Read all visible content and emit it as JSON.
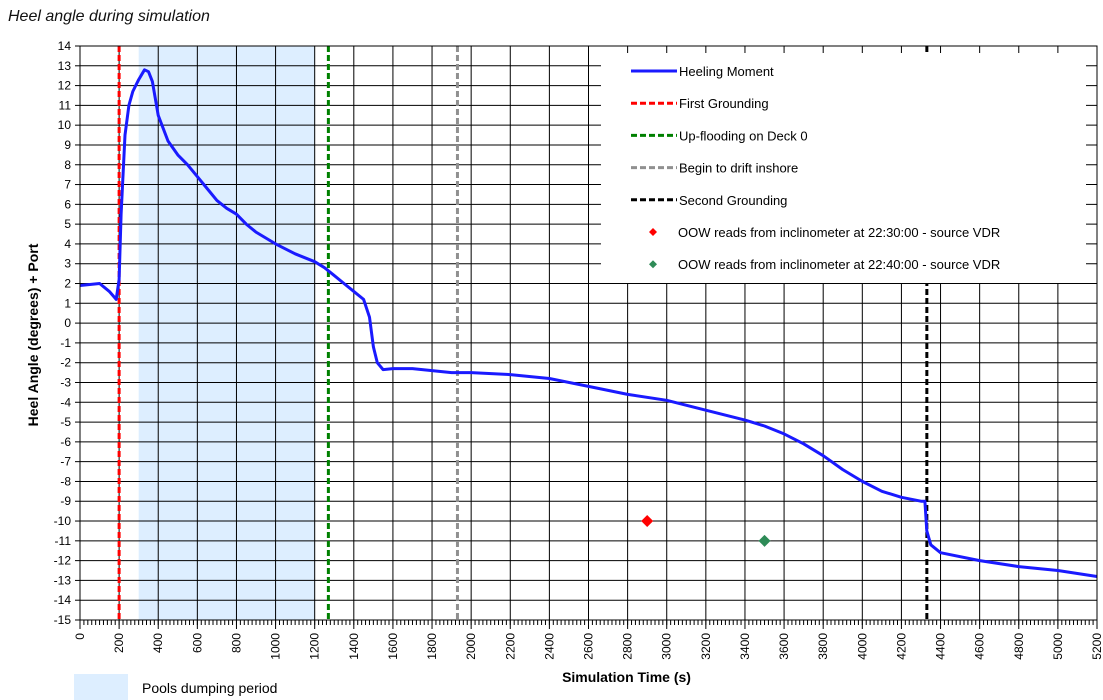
{
  "title": "Heel angle during simulation",
  "chart_data": {
    "type": "line",
    "xlabel": "Simulation Time (s)",
    "ylabel": "Heel Angle (degrees)  + Port",
    "xlim": [
      0,
      5200
    ],
    "ylim": [
      -15,
      14
    ],
    "x_major_step": 200,
    "x_minor_step": 20,
    "y_step": 1,
    "grid": true,
    "legend_position": "top-right",
    "x_ticks": [
      "0",
      "200",
      "400",
      "600",
      "800",
      "1000",
      "1200",
      "1400",
      "1600",
      "1800",
      "2000",
      "2200",
      "2400",
      "2600",
      "2800",
      "3000",
      "3200",
      "3400",
      "3600",
      "3800",
      "4000",
      "4200",
      "4400",
      "4600",
      "4800",
      "5000",
      "5200"
    ],
    "y_ticks": [
      "14",
      "13",
      "12",
      "11",
      "10",
      "9",
      "8",
      "7",
      "6",
      "5",
      "4",
      "3",
      "2",
      "1",
      "0",
      "-1",
      "-2",
      "-3",
      "-4",
      "-5",
      "-6",
      "-7",
      "-8",
      "-9",
      "-10",
      "-11",
      "-12",
      "-13",
      "-14",
      "-15"
    ],
    "shaded_region": {
      "label": "Pools dumping period",
      "x_start": 300,
      "x_end": 1200,
      "color": "#ddeeff"
    },
    "series": [
      {
        "name": "Heeling Moment",
        "color": "#1a1aff",
        "x": [
          0,
          50,
          100,
          150,
          185,
          200,
          210,
          230,
          250,
          270,
          300,
          330,
          350,
          370,
          400,
          450,
          500,
          550,
          600,
          650,
          700,
          750,
          800,
          850,
          900,
          1000,
          1100,
          1200,
          1250,
          1300,
          1350,
          1400,
          1450,
          1480,
          1500,
          1520,
          1550,
          1600,
          1700,
          1800,
          1900,
          2000,
          2200,
          2400,
          2600,
          2800,
          3000,
          3200,
          3400,
          3500,
          3600,
          3700,
          3800,
          3900,
          4000,
          4100,
          4200,
          4300,
          4320,
          4330,
          4350,
          4400,
          4600,
          4800,
          5000,
          5200
        ],
        "y": [
          1.9,
          1.95,
          2.0,
          1.6,
          1.2,
          2.2,
          5.5,
          9.5,
          11.0,
          11.7,
          12.3,
          12.8,
          12.7,
          12.2,
          10.5,
          9.2,
          8.5,
          8.0,
          7.4,
          6.8,
          6.2,
          5.8,
          5.5,
          5.0,
          4.6,
          4.0,
          3.5,
          3.1,
          2.8,
          2.4,
          2.0,
          1.6,
          1.2,
          0.3,
          -1.2,
          -2.0,
          -2.35,
          -2.3,
          -2.3,
          -2.4,
          -2.5,
          -2.5,
          -2.6,
          -2.8,
          -3.2,
          -3.6,
          -3.9,
          -4.4,
          -4.9,
          -5.2,
          -5.6,
          -6.1,
          -6.7,
          -7.4,
          -8.0,
          -8.5,
          -8.8,
          -9.0,
          -9.0,
          -10.5,
          -11.2,
          -11.6,
          -12.0,
          -12.3,
          -12.5,
          -12.8
        ]
      }
    ],
    "events": [
      {
        "name": "First Grounding",
        "x": 200,
        "color": "#ff0000"
      },
      {
        "name": "Up-flooding on Deck 0",
        "x": 1270,
        "color": "#008000"
      },
      {
        "name": "Begin to drift inshore",
        "x": 1930,
        "color": "#909090"
      },
      {
        "name": "Second Grounding",
        "x": 4330,
        "color": "#000000"
      }
    ],
    "points": [
      {
        "name": "OOW reads from inclinometer at 22:30:00 - source VDR",
        "x": 2900,
        "y": -10,
        "color": "#ff0000"
      },
      {
        "name": "OOW reads from inclinometer at 22:40:00 - source VDR",
        "x": 3500,
        "y": -11,
        "color": "#2e8b57"
      }
    ]
  }
}
